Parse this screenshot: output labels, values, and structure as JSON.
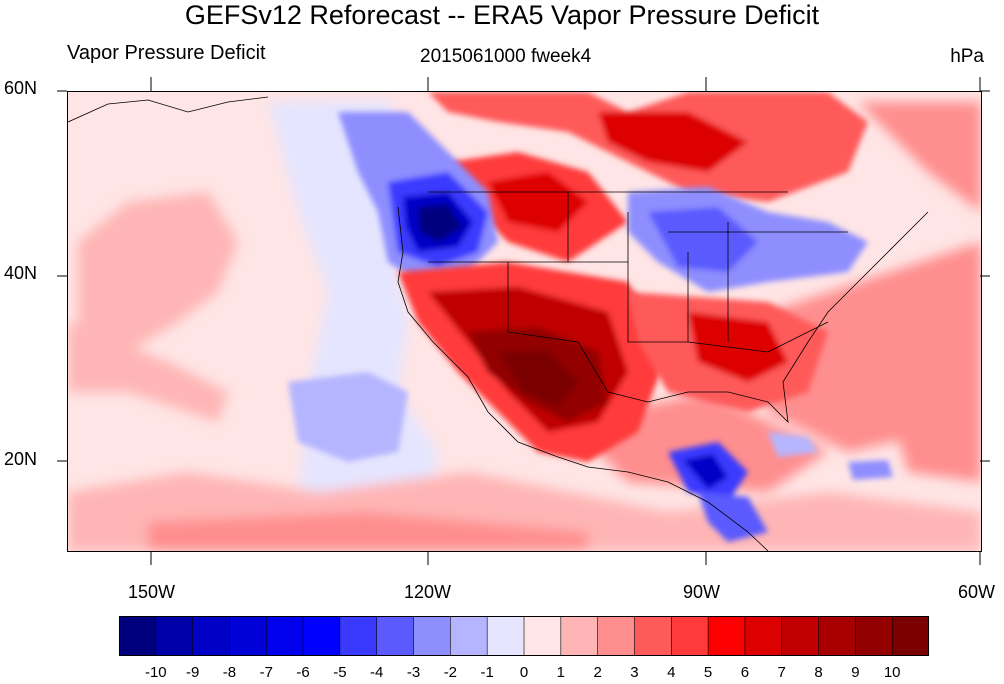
{
  "title": "GEFSv12 Reforecast -- ERA5 Vapor Pressure Deficit",
  "left_label": "Vapor Pressure Deficit",
  "center_label": "2015061000 fweek4",
  "units_label": "hPa",
  "lat_ticks": [
    "60N",
    "40N",
    "20N"
  ],
  "lon_ticks": [
    "150W",
    "120W",
    "90W",
    "60W"
  ],
  "colorbar": {
    "labels": [
      "-10",
      "-9",
      "-8",
      "-7",
      "-6",
      "-5",
      "-4",
      "-3",
      "-2",
      "-1",
      "0",
      "1",
      "2",
      "3",
      "4",
      "5",
      "6",
      "7",
      "8",
      "9",
      "10"
    ],
    "colors": [
      "#00007f",
      "#0000a8",
      "#0000c6",
      "#0000d9",
      "#0000ee",
      "#0000ff",
      "#3a3aff",
      "#5a5aff",
      "#8e8eff",
      "#b5b5ff",
      "#e5e5ff",
      "#ffe5e5",
      "#ffb5b5",
      "#ff8e8e",
      "#ff5a5a",
      "#ff3a3a",
      "#ff0000",
      "#dd0000",
      "#c00000",
      "#a80000",
      "#930000",
      "#7a0000"
    ]
  },
  "colors": {
    "neutral_warm": "#ffe5e5",
    "neutral_cool": "#e5e5ff",
    "land_outline": "#000000"
  }
}
